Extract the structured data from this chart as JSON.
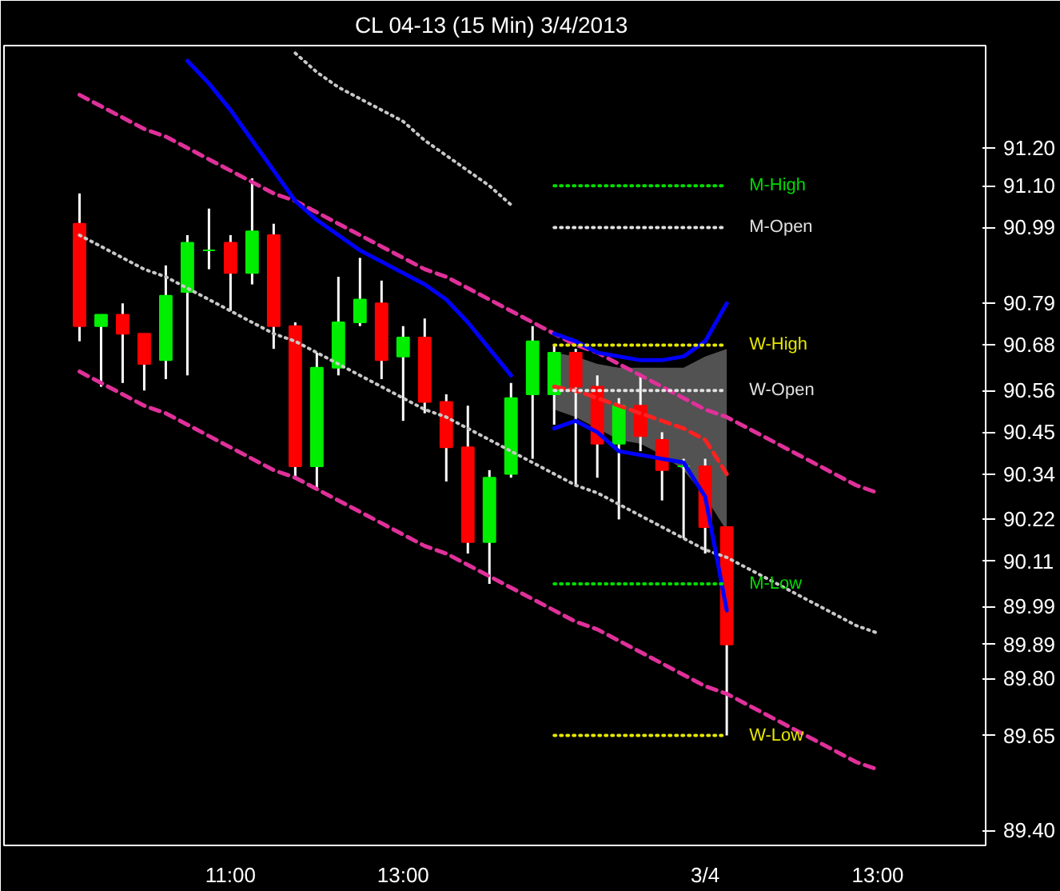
{
  "chart_data": {
    "type": "candlestick",
    "title": "CL 04-13 (15 Min)  3/4/2013",
    "categories": [
      null,
      null,
      null,
      null,
      null,
      null,
      null,
      "11:00",
      null,
      null,
      null,
      null,
      null,
      null,
      null,
      "13:00",
      null,
      null,
      null,
      null,
      null,
      null,
      null,
      null,
      null,
      null,
      null,
      null,
      null,
      "3/4",
      null,
      null,
      null,
      null,
      null,
      null,
      null,
      "13:00"
    ],
    "ohlc": [
      [
        91.0,
        91.08,
        90.69,
        90.73
      ],
      [
        90.73,
        90.76,
        90.57,
        90.76
      ],
      [
        90.76,
        90.79,
        90.58,
        90.71
      ],
      [
        90.71,
        90.71,
        90.56,
        90.63
      ],
      [
        90.64,
        90.89,
        90.59,
        90.81
      ],
      [
        90.82,
        90.97,
        90.6,
        90.95
      ],
      [
        90.93,
        91.04,
        90.88,
        90.93
      ],
      [
        90.95,
        90.97,
        90.77,
        90.87
      ],
      [
        90.87,
        91.12,
        90.84,
        90.98
      ],
      [
        90.97,
        91.0,
        90.67,
        90.73
      ],
      [
        90.73,
        90.74,
        90.33,
        90.36
      ],
      [
        90.36,
        90.66,
        90.3,
        90.62
      ],
      [
        90.62,
        90.86,
        90.6,
        90.74
      ],
      [
        90.74,
        90.91,
        90.73,
        90.8
      ],
      [
        90.79,
        90.85,
        90.59,
        90.64
      ],
      [
        90.65,
        90.73,
        90.48,
        90.7
      ],
      [
        90.7,
        90.75,
        90.5,
        90.53
      ],
      [
        90.53,
        90.55,
        90.32,
        90.41
      ],
      [
        90.41,
        90.52,
        90.13,
        90.16
      ],
      [
        90.16,
        90.35,
        90.05,
        90.33
      ],
      [
        90.34,
        90.58,
        90.33,
        90.54
      ],
      [
        90.55,
        90.73,
        90.38,
        90.69
      ],
      [
        90.55,
        90.68,
        90.47,
        90.66
      ],
      [
        90.66,
        90.67,
        90.31,
        90.57
      ],
      [
        90.57,
        90.6,
        90.33,
        90.42
      ],
      [
        90.42,
        90.54,
        90.22,
        90.52
      ],
      [
        90.52,
        90.6,
        90.4,
        90.44
      ],
      [
        90.43,
        90.45,
        90.27,
        90.35
      ],
      [
        90.36,
        90.38,
        90.17,
        90.36
      ],
      [
        90.36,
        90.38,
        90.13,
        90.2
      ],
      [
        90.2,
        90.2,
        89.65,
        89.89
      ],
      null,
      null,
      null,
      null,
      null,
      null,
      null
    ],
    "colors": [
      "#ff0000",
      "#00ee00",
      "#ff0000",
      "#ff0000",
      "#00ee00",
      "#00ee00",
      "#00ee00",
      "#ff0000",
      "#00ee00",
      "#ff0000",
      "#ff0000",
      "#00ee00",
      "#00ee00",
      "#00ee00",
      "#ff0000",
      "#00ee00",
      "#ff0000",
      "#ff0000",
      "#ff0000",
      "#00ee00",
      "#00ee00",
      "#00ee00",
      "#00ee00",
      "#ff0000",
      "#ff0000",
      "#00ee00",
      "#ff0000",
      "#ff0000",
      "#00ee00",
      "#ff0000",
      "#ff0000",
      null,
      null,
      null,
      null,
      null,
      null,
      null
    ],
    "series": [
      {
        "type": "line",
        "color": "#e0309a",
        "line_style": "dashed",
        "values": [
          91.34,
          91.31,
          91.28,
          91.25,
          91.23,
          91.2,
          91.17,
          91.14,
          91.11,
          91.08,
          91.06,
          91.03,
          91.0,
          90.97,
          90.94,
          90.91,
          90.88,
          90.86,
          90.83,
          90.8,
          90.77,
          90.74,
          90.71,
          90.68,
          90.66,
          90.63,
          90.6,
          90.57,
          90.54,
          90.51,
          90.49,
          90.46,
          90.43,
          90.4,
          90.37,
          90.34,
          90.31,
          90.29
        ]
      },
      {
        "type": "line",
        "color": "#c8c8c8",
        "line_style": "dotted",
        "values": [
          90.97,
          90.94,
          90.91,
          90.88,
          90.86,
          90.83,
          90.8,
          90.77,
          90.74,
          90.71,
          90.69,
          90.66,
          90.63,
          90.6,
          90.57,
          90.54,
          90.51,
          90.49,
          90.46,
          90.43,
          90.4,
          90.37,
          90.34,
          90.31,
          90.29,
          90.26,
          90.23,
          90.2,
          90.17,
          90.14,
          90.12,
          90.09,
          90.06,
          90.03,
          90.0,
          89.97,
          89.94,
          89.92
        ]
      },
      {
        "type": "line",
        "color": "#e0309a",
        "line_style": "dashed",
        "values": [
          90.61,
          90.58,
          90.55,
          90.52,
          90.5,
          90.47,
          90.44,
          90.41,
          90.38,
          90.35,
          90.33,
          90.3,
          90.27,
          90.24,
          90.21,
          90.18,
          90.15,
          90.13,
          90.1,
          90.07,
          90.04,
          90.01,
          89.98,
          89.95,
          89.93,
          89.9,
          89.87,
          89.84,
          89.81,
          89.78,
          89.76,
          89.73,
          89.7,
          89.67,
          89.64,
          89.61,
          89.58,
          89.56
        ]
      },
      {
        "type": "line",
        "color": "#c8c8c8",
        "line_style": "dotted",
        "values": [
          null,
          null,
          null,
          null,
          null,
          null,
          null,
          null,
          null,
          null,
          91.45,
          91.4,
          91.36,
          91.33,
          91.3,
          91.27,
          91.22,
          91.18,
          91.14,
          91.1,
          91.05,
          null,
          null,
          null,
          null,
          null,
          null,
          null,
          null,
          null,
          null,
          null,
          null,
          null,
          null,
          null,
          null,
          null
        ]
      },
      {
        "type": "line",
        "color": "#0000ff",
        "line_style": "solid",
        "values": [
          null,
          null,
          null,
          null,
          null,
          91.43,
          91.37,
          91.3,
          91.22,
          91.14,
          91.06,
          91.01,
          90.97,
          90.93,
          90.9,
          90.87,
          90.84,
          90.8,
          90.74,
          90.67,
          90.6,
          null,
          null,
          null,
          null,
          null,
          null,
          null,
          null,
          null,
          null,
          null,
          null,
          null,
          null,
          null,
          null,
          null
        ]
      },
      {
        "type": "line",
        "color": "#0000ff",
        "line_style": "solid",
        "values": [
          null,
          null,
          null,
          null,
          null,
          null,
          null,
          null,
          null,
          null,
          null,
          null,
          null,
          null,
          null,
          null,
          null,
          null,
          null,
          null,
          null,
          null,
          90.71,
          90.69,
          90.66,
          90.65,
          90.64,
          90.64,
          90.65,
          90.69,
          90.79,
          null,
          null,
          null,
          null,
          null,
          null,
          null
        ]
      },
      {
        "type": "line",
        "color": "#0000ff",
        "line_style": "solid",
        "values": [
          null,
          null,
          null,
          null,
          null,
          null,
          null,
          null,
          null,
          null,
          null,
          null,
          null,
          null,
          null,
          null,
          null,
          null,
          null,
          null,
          null,
          null,
          90.46,
          90.48,
          90.45,
          90.4,
          90.39,
          90.38,
          90.37,
          90.28,
          89.98,
          null,
          null,
          null,
          null,
          null,
          null,
          null
        ]
      },
      {
        "type": "line",
        "color": "#ff2020",
        "line_style": "dashed",
        "values": [
          null,
          null,
          null,
          null,
          null,
          null,
          null,
          null,
          null,
          null,
          null,
          null,
          null,
          null,
          null,
          null,
          null,
          null,
          null,
          null,
          null,
          null,
          90.57,
          90.56,
          90.54,
          90.52,
          90.5,
          90.48,
          90.46,
          90.43,
          90.34,
          null,
          null,
          null,
          null,
          null,
          null,
          null
        ],
        "lower": [
          null,
          null,
          null,
          null,
          null,
          null,
          null,
          null,
          null,
          null,
          null,
          null,
          null,
          null,
          null,
          null,
          null,
          null,
          null,
          null,
          null,
          null,
          90.51,
          90.49,
          90.46,
          90.43,
          90.42,
          90.39,
          90.35,
          90.28,
          90.19,
          null,
          null,
          null,
          null,
          null,
          null,
          null
        ],
        "upper": [
          null,
          null,
          null,
          null,
          null,
          null,
          null,
          null,
          null,
          null,
          null,
          null,
          null,
          null,
          null,
          null,
          null,
          null,
          null,
          null,
          null,
          null,
          90.66,
          90.65,
          90.63,
          90.62,
          90.62,
          90.62,
          90.62,
          90.65,
          90.67,
          null,
          null,
          null,
          null,
          null,
          null,
          null
        ]
      },
      {
        "type": "line",
        "name": "M-High",
        "color": "#00dd00",
        "line_style": "dotted",
        "values": [
          null,
          null,
          null,
          null,
          null,
          null,
          null,
          null,
          null,
          null,
          null,
          null,
          null,
          null,
          null,
          null,
          null,
          null,
          null,
          null,
          null,
          null,
          91.1,
          91.1,
          91.1,
          91.1,
          91.1,
          91.1,
          91.1,
          91.1,
          91.1,
          null,
          null,
          null,
          null,
          null,
          null,
          null
        ]
      },
      {
        "type": "line",
        "name": "M-Open",
        "color": "#e0e0e0",
        "line_style": "dotted",
        "values": [
          null,
          null,
          null,
          null,
          null,
          null,
          null,
          null,
          null,
          null,
          null,
          null,
          null,
          null,
          null,
          null,
          null,
          null,
          null,
          null,
          null,
          null,
          90.99,
          90.99,
          90.99,
          90.99,
          90.99,
          90.99,
          90.99,
          90.99,
          90.99,
          null,
          null,
          null,
          null,
          null,
          null,
          null
        ]
      },
      {
        "type": "line",
        "name": "W-High",
        "color": "#e6e600",
        "line_style": "dotted",
        "values": [
          null,
          null,
          null,
          null,
          null,
          null,
          null,
          null,
          null,
          null,
          null,
          null,
          null,
          null,
          null,
          null,
          null,
          null,
          null,
          null,
          null,
          null,
          90.68,
          90.68,
          90.68,
          90.68,
          90.68,
          90.68,
          90.68,
          90.68,
          90.68,
          null,
          null,
          null,
          null,
          null,
          null,
          null
        ]
      },
      {
        "type": "line",
        "name": "W-Open",
        "color": "#e0e0e0",
        "line_style": "dotted",
        "values": [
          null,
          null,
          null,
          null,
          null,
          null,
          null,
          null,
          null,
          null,
          null,
          null,
          null,
          null,
          null,
          null,
          null,
          null,
          null,
          null,
          null,
          null,
          90.56,
          90.56,
          90.56,
          90.56,
          90.56,
          90.56,
          90.56,
          90.56,
          90.56,
          null,
          null,
          null,
          null,
          null,
          null,
          null
        ]
      },
      {
        "type": "line",
        "name": "M-Low",
        "color": "#00dd00",
        "line_style": "dotted",
        "values": [
          null,
          null,
          null,
          null,
          null,
          null,
          null,
          null,
          null,
          null,
          null,
          null,
          null,
          null,
          null,
          null,
          null,
          null,
          null,
          null,
          null,
          null,
          90.05,
          90.05,
          90.05,
          90.05,
          90.05,
          90.05,
          90.05,
          90.05,
          90.05,
          null,
          null,
          null,
          null,
          null,
          null,
          null
        ]
      },
      {
        "type": "line",
        "name": "W-Low",
        "color": "#e6e600",
        "line_style": "dotted",
        "values": [
          null,
          null,
          null,
          null,
          null,
          null,
          null,
          null,
          null,
          null,
          null,
          null,
          null,
          null,
          null,
          null,
          null,
          null,
          null,
          null,
          null,
          null,
          89.65,
          89.65,
          89.65,
          89.65,
          89.65,
          89.65,
          89.65,
          89.65,
          89.65,
          null,
          null,
          null,
          null,
          null,
          null,
          null
        ]
      }
    ],
    "ylim": [
      89.36,
      91.47
    ],
    "yticks": [
      {
        "value": 91.2,
        "label": "91.20"
      },
      {
        "value": 89.8,
        "label": "89.80"
      },
      {
        "value": 89.4,
        "label": "89.40"
      },
      {
        "value": 91.1,
        "label": "91.10"
      },
      {
        "value": 90.99,
        "label": "90.99"
      },
      {
        "value": 90.79,
        "label": "90.79"
      },
      {
        "value": 90.68,
        "label": "90.68"
      },
      {
        "value": 90.56,
        "label": "90.56"
      },
      {
        "value": 90.45,
        "label": "90.45"
      },
      {
        "value": 90.34,
        "label": "90.34"
      },
      {
        "value": 90.22,
        "label": "90.22"
      },
      {
        "value": 90.11,
        "label": "90.11"
      },
      {
        "value": 89.99,
        "label": "89.99"
      },
      {
        "value": 89.89,
        "label": "89.89"
      },
      {
        "value": 89.65,
        "label": "89.65"
      }
    ],
    "grid": false
  }
}
